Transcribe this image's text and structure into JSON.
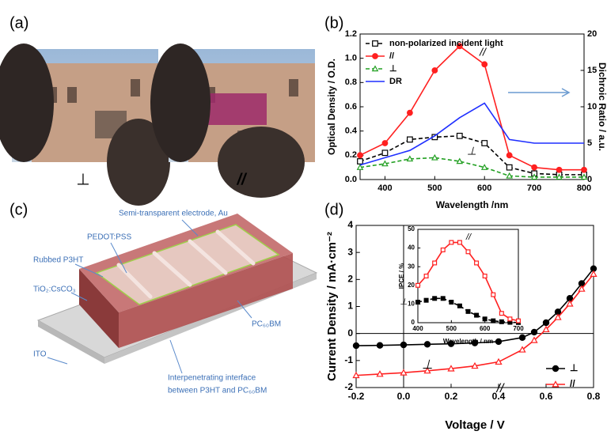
{
  "panel_labels": [
    "(a)",
    "(b)",
    "(c)",
    "(d)"
  ],
  "photo_captions": [
    "⊥",
    "//"
  ],
  "diagram": {
    "labels": [
      "Semi-transparent electrode, Au",
      "PEDOT:PSS",
      "Rubbed P3HT",
      "TiO₂:CsCO₃",
      "ITO",
      "PC₆₀BM",
      "Interpenetrating interface",
      "between P3HT and PC₆₀BM"
    ]
  },
  "chart_data": [
    {
      "type": "line",
      "xlabel": "Wavelength /nm",
      "ylabel": "Optical Density / O.D.",
      "y2label": "Dichroic Ratio / a.u.",
      "x": [
        350,
        400,
        450,
        500,
        550,
        600,
        650,
        700,
        750,
        800
      ],
      "xlim": [
        350,
        800
      ],
      "xticks": [
        400,
        500,
        600,
        700,
        800
      ],
      "ylim": [
        0,
        1.2
      ],
      "yticks": [
        {
          "value": 0,
          "label": "0.0"
        },
        0.2,
        0.4,
        0.6,
        0.8,
        {
          "value": 1,
          "label": "1.0"
        },
        1.2
      ],
      "y2lim": [
        0,
        20
      ],
      "y2ticks": [
        0,
        5,
        10,
        15,
        20
      ],
      "legend": "upper left",
      "series": [
        {
          "name": "non-polarized incident light",
          "color": "#000000",
          "marker": "square",
          "filled": false,
          "dash": true,
          "values": [
            0.15,
            0.22,
            0.33,
            0.35,
            0.36,
            0.3,
            0.1,
            0.05,
            0.04,
            0.04
          ]
        },
        {
          "name": "//",
          "color": "#ff2020",
          "marker": "circle",
          "filled": true,
          "dash": false,
          "values": [
            0.2,
            0.3,
            0.55,
            0.9,
            1.1,
            0.95,
            0.2,
            0.1,
            0.08,
            0.08
          ]
        },
        {
          "name": "⊥",
          "color": "#22a022",
          "marker": "triangle",
          "filled": false,
          "dash": true,
          "values": [
            0.1,
            0.13,
            0.17,
            0.18,
            0.15,
            0.1,
            0.03,
            0.02,
            0.02,
            0.02
          ]
        },
        {
          "name": "DR",
          "color": "#1f2fff",
          "marker": "none",
          "filled": false,
          "dash": false,
          "axis": "y2",
          "values": [
            2,
            3,
            4,
            6,
            8.5,
            10.5,
            5.5,
            5,
            5,
            5
          ]
        }
      ],
      "annotations": [
        "//",
        "⊥"
      ]
    },
    {
      "type": "line",
      "xlabel": "Voltage / V",
      "ylabel": "Current Density / mA·cm⁻²",
      "x": [
        -0.2,
        -0.1,
        0,
        0.1,
        0.2,
        0.3,
        0.4,
        0.5,
        0.55,
        0.6,
        0.65,
        0.7,
        0.75,
        0.8
      ],
      "xlim": [
        -0.2,
        0.8
      ],
      "xticks": [
        -0.2,
        {
          "value": 0,
          "label": "0.0"
        },
        0.2,
        0.4,
        0.6,
        0.8
      ],
      "ylim": [
        -2,
        4
      ],
      "yticks": [
        -2,
        -1,
        0,
        1,
        2,
        3,
        4
      ],
      "zero_lines": true,
      "legend": "lower right",
      "series": [
        {
          "name": "⊥",
          "color": "#000000",
          "marker": "circle",
          "filled": true,
          "dash": false,
          "values": [
            -0.45,
            -0.44,
            -0.42,
            -0.4,
            -0.38,
            -0.35,
            -0.3,
            -0.15,
            0.05,
            0.4,
            0.8,
            1.3,
            1.85,
            2.4
          ]
        },
        {
          "name": "//",
          "color": "#ff2020",
          "marker": "triangle",
          "filled": false,
          "dash": false,
          "values": [
            -1.55,
            -1.5,
            -1.45,
            -1.38,
            -1.3,
            -1.2,
            -1.05,
            -0.6,
            -0.25,
            0.15,
            0.6,
            1.1,
            1.65,
            2.2
          ]
        }
      ],
      "annotations": [
        "⊥",
        "//"
      ]
    },
    {
      "type": "line",
      "xlabel": "Wavelength / nm",
      "ylabel": "IPCE / %",
      "x": [
        400,
        425,
        450,
        475,
        500,
        525,
        550,
        575,
        600,
        625,
        650,
        675,
        700
      ],
      "xlim": [
        400,
        700
      ],
      "xticks": [
        400,
        500,
        600,
        700
      ],
      "ylim": [
        0,
        50
      ],
      "yticks": [
        0,
        10,
        20,
        30,
        40,
        50
      ],
      "series": [
        {
          "color": "#000000",
          "marker": "square",
          "filled": true,
          "dash": true,
          "values": [
            11,
            12,
            13,
            13,
            11,
            9,
            6,
            4,
            2,
            1,
            0.5,
            0.2,
            0.1
          ]
        },
        {
          "color": "#ff2020",
          "marker": "square",
          "filled": false,
          "dash": false,
          "values": [
            20,
            25,
            32,
            39,
            43,
            43,
            38,
            32,
            25,
            15,
            5,
            2,
            1
          ]
        }
      ],
      "annotations": [
        "//",
        "⊥"
      ]
    }
  ]
}
